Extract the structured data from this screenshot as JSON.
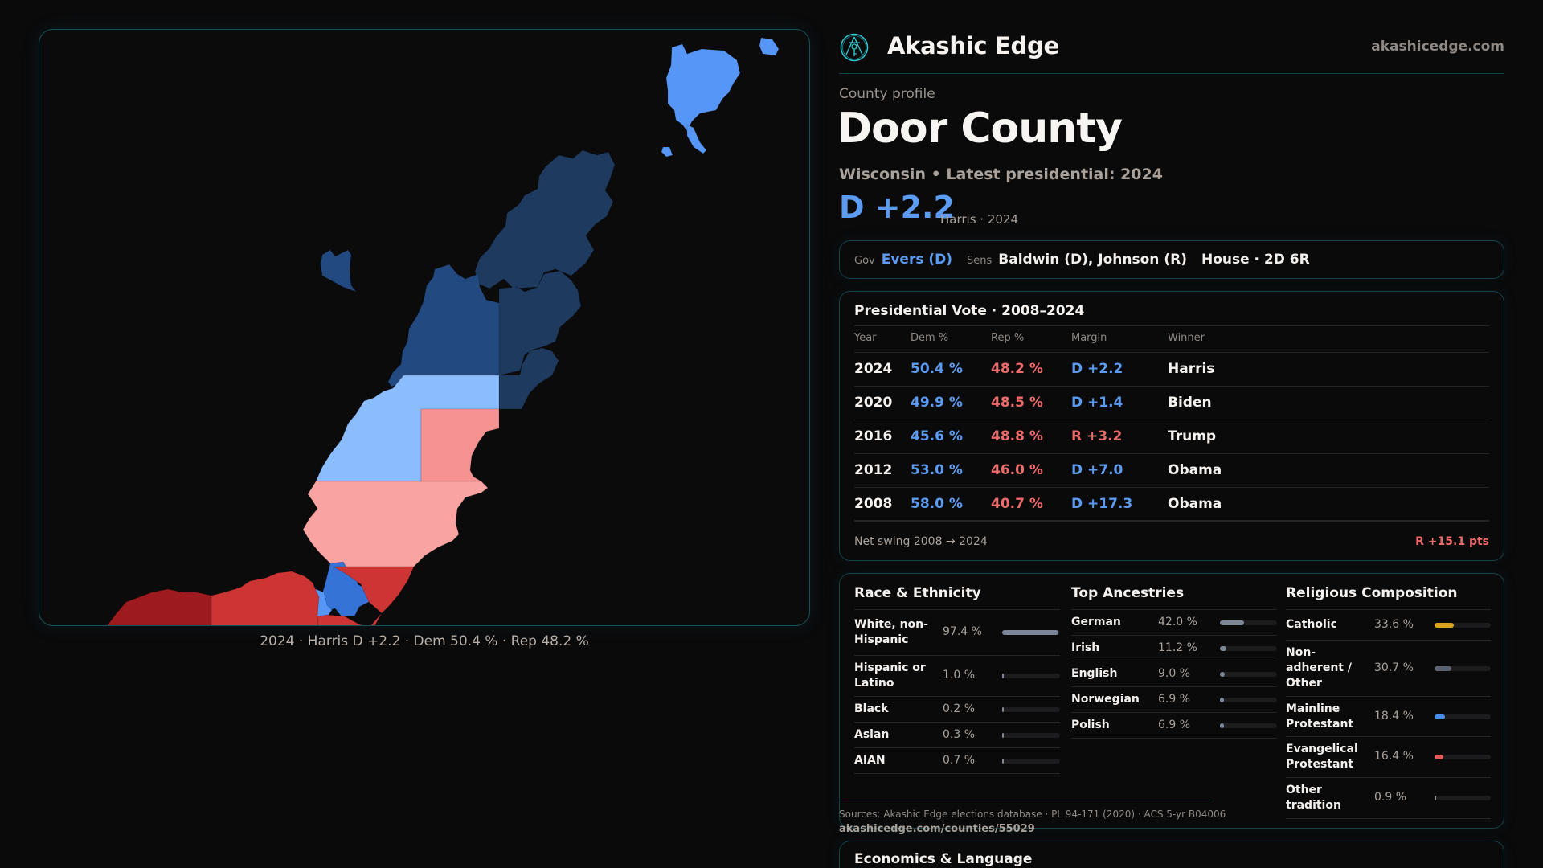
{
  "brand": {
    "name": "Akashic Edge",
    "url": "akashicedge.com",
    "logo_icon": "compass-key-emblem-icon"
  },
  "profile": {
    "eyebrow": "County profile",
    "title": "Door County",
    "subtitle": "Wisconsin • Latest presidential: 2024",
    "margin": "D +2.2",
    "margin_sub": "Harris · 2024"
  },
  "officials": {
    "gov_label": "Gov",
    "gov_value": "Evers (D)",
    "sens_label": "Sens",
    "sens_value": "Baldwin (D), Johnson (R)",
    "house_value": "House · 2D 6R"
  },
  "map": {
    "caption": "2024 · Harris D +2.2 · Dem 50.4 % · Rep 48.2 %",
    "colors": {
      "strong_dem": "#1e3a5f",
      "dem": "#234a80",
      "lean_dem": "#8bbcfc",
      "likely_dem": "#5596f6",
      "city_dem": "#3574d6",
      "lean_rep": "#f79292",
      "tilt_rep": "#f9a3a3",
      "likely_rep": "#f47777",
      "rep": "#cd3434",
      "strong_rep": "#9d1b1e"
    }
  },
  "presidential": {
    "title": "Presidential Vote · 2008–2024",
    "headers": {
      "year": "Year",
      "dem": "Dem %",
      "rep": "Rep %",
      "margin": "Margin",
      "winner": "Winner"
    },
    "rows": [
      {
        "year": "2024",
        "dem": "50.4 %",
        "rep": "48.2 %",
        "margin": "D +2.2",
        "party": "D",
        "winner": "Harris"
      },
      {
        "year": "2020",
        "dem": "49.9 %",
        "rep": "48.5 %",
        "margin": "D +1.4",
        "party": "D",
        "winner": "Biden"
      },
      {
        "year": "2016",
        "dem": "45.6 %",
        "rep": "48.8 %",
        "margin": "R +3.2",
        "party": "R",
        "winner": "Trump"
      },
      {
        "year": "2012",
        "dem": "53.0 %",
        "rep": "46.0 %",
        "margin": "D +7.0",
        "party": "D",
        "winner": "Obama"
      },
      {
        "year": "2008",
        "dem": "58.0 %",
        "rep": "40.7 %",
        "margin": "D +17.3",
        "party": "D",
        "winner": "Obama"
      }
    ],
    "swing_label": "Net swing 2008 → 2024",
    "swing_value": "R +15.1 pts"
  },
  "demographics": {
    "race": {
      "title": "Race & Ethnicity",
      "items": [
        {
          "label": "White, non-Hispanic",
          "value": "97.4 %",
          "pct": 97.4,
          "color": "#7e8798"
        },
        {
          "label": "Hispanic or Latino",
          "value": "1.0 %",
          "pct": 1.0,
          "color": "#7e8798"
        },
        {
          "label": "Black",
          "value": "0.2 %",
          "pct": 0.2,
          "color": "#7e8798"
        },
        {
          "label": "Asian",
          "value": "0.3 %",
          "pct": 0.3,
          "color": "#7e8798"
        },
        {
          "label": "AIAN",
          "value": "0.7 %",
          "pct": 0.7,
          "color": "#7e8798"
        }
      ]
    },
    "ancestry": {
      "title": "Top Ancestries",
      "items": [
        {
          "label": "German",
          "value": "42.0 %",
          "pct": 42.0,
          "color": "#7e8798"
        },
        {
          "label": "Irish",
          "value": "11.2 %",
          "pct": 11.2,
          "color": "#7e8798"
        },
        {
          "label": "English",
          "value": "9.0 %",
          "pct": 9.0,
          "color": "#7e8798"
        },
        {
          "label": "Norwegian",
          "value": "6.9 %",
          "pct": 6.9,
          "color": "#7e8798"
        },
        {
          "label": "Polish",
          "value": "6.9 %",
          "pct": 6.9,
          "color": "#7e8798"
        }
      ]
    },
    "religion": {
      "title": "Religious Composition",
      "items": [
        {
          "label": "Catholic",
          "value": "33.6 %",
          "pct": 33.6,
          "color": "#d9a41e"
        },
        {
          "label": "Non-adherent / Other",
          "value": "30.7 %",
          "pct": 30.7,
          "color": "#5b6270"
        },
        {
          "label": "Mainline Protestant",
          "value": "18.4 %",
          "pct": 18.4,
          "color": "#4a8ae8"
        },
        {
          "label": "Evangelical Protestant",
          "value": "16.4 %",
          "pct": 16.4,
          "color": "#e05a5a"
        },
        {
          "label": "Other tradition",
          "value": "0.9 %",
          "pct": 0.9,
          "color": "#8a8a8a"
        }
      ]
    }
  },
  "sources": {
    "line": "Sources: Akashic Edge elections database · PL 94-171 (2020) · ACS 5-yr B04006",
    "url": "akashicedge.com/counties/55029"
  },
  "economics": {
    "title": "Economics & Language"
  }
}
